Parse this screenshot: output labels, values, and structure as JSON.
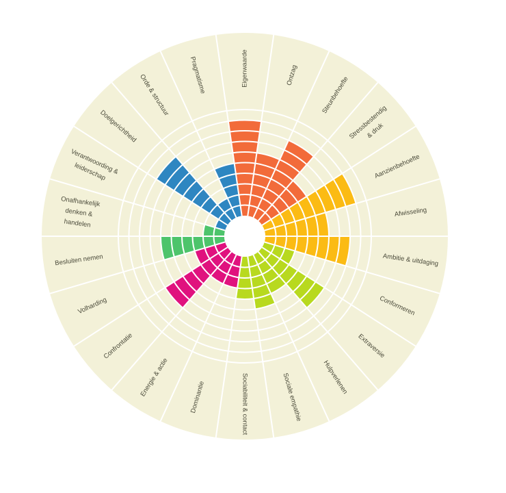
{
  "chart_data": {
    "type": "radial-bar",
    "categories": [
      "Eigenwaarde",
      "Ontzag",
      "Steunbehoefte",
      "Stressbestendig & druk",
      "Aanzienbehoefte",
      "Afwisseling",
      "Ambitie & uitdaging",
      "Conformeren",
      "Extraversie",
      "Hulpverlenen",
      "Sociale empathie",
      "Sociabiliteit & contact",
      "Dominantie",
      "Energie & actie",
      "Confrontatie",
      "Volharding",
      "Besluiten nemen",
      "Onafhankelijk denken & handelen",
      "Verantwoording & leiderschap",
      "Doelgerichtheid",
      "Orde & structuur",
      "Pragmatisme"
    ],
    "values": [
      9,
      6,
      8,
      5,
      9,
      6,
      8,
      3,
      7,
      4,
      5,
      4,
      3,
      3,
      7,
      3,
      6,
      2,
      1,
      8,
      2,
      5
    ],
    "colors": [
      "#f26b3a",
      "#f26b3a",
      "#f26b3a",
      "#f26b3a",
      "#fbbb14",
      "#fbbb14",
      "#fbbb14",
      "#b8d91f",
      "#b8d91f",
      "#b8d91f",
      "#b8d91f",
      "#b8d91f",
      "#e0127e",
      "#e0127e",
      "#e0127e",
      "#e0127e",
      "#4dc46b",
      "#4dc46b",
      "#2e86c1",
      "#2e86c1",
      "#2e86c1",
      "#2e86c1"
    ],
    "ylim": [
      0,
      10
    ],
    "yticks": [
      1,
      2,
      3,
      4,
      5,
      6,
      7,
      8,
      9,
      10
    ],
    "grid": true
  }
}
